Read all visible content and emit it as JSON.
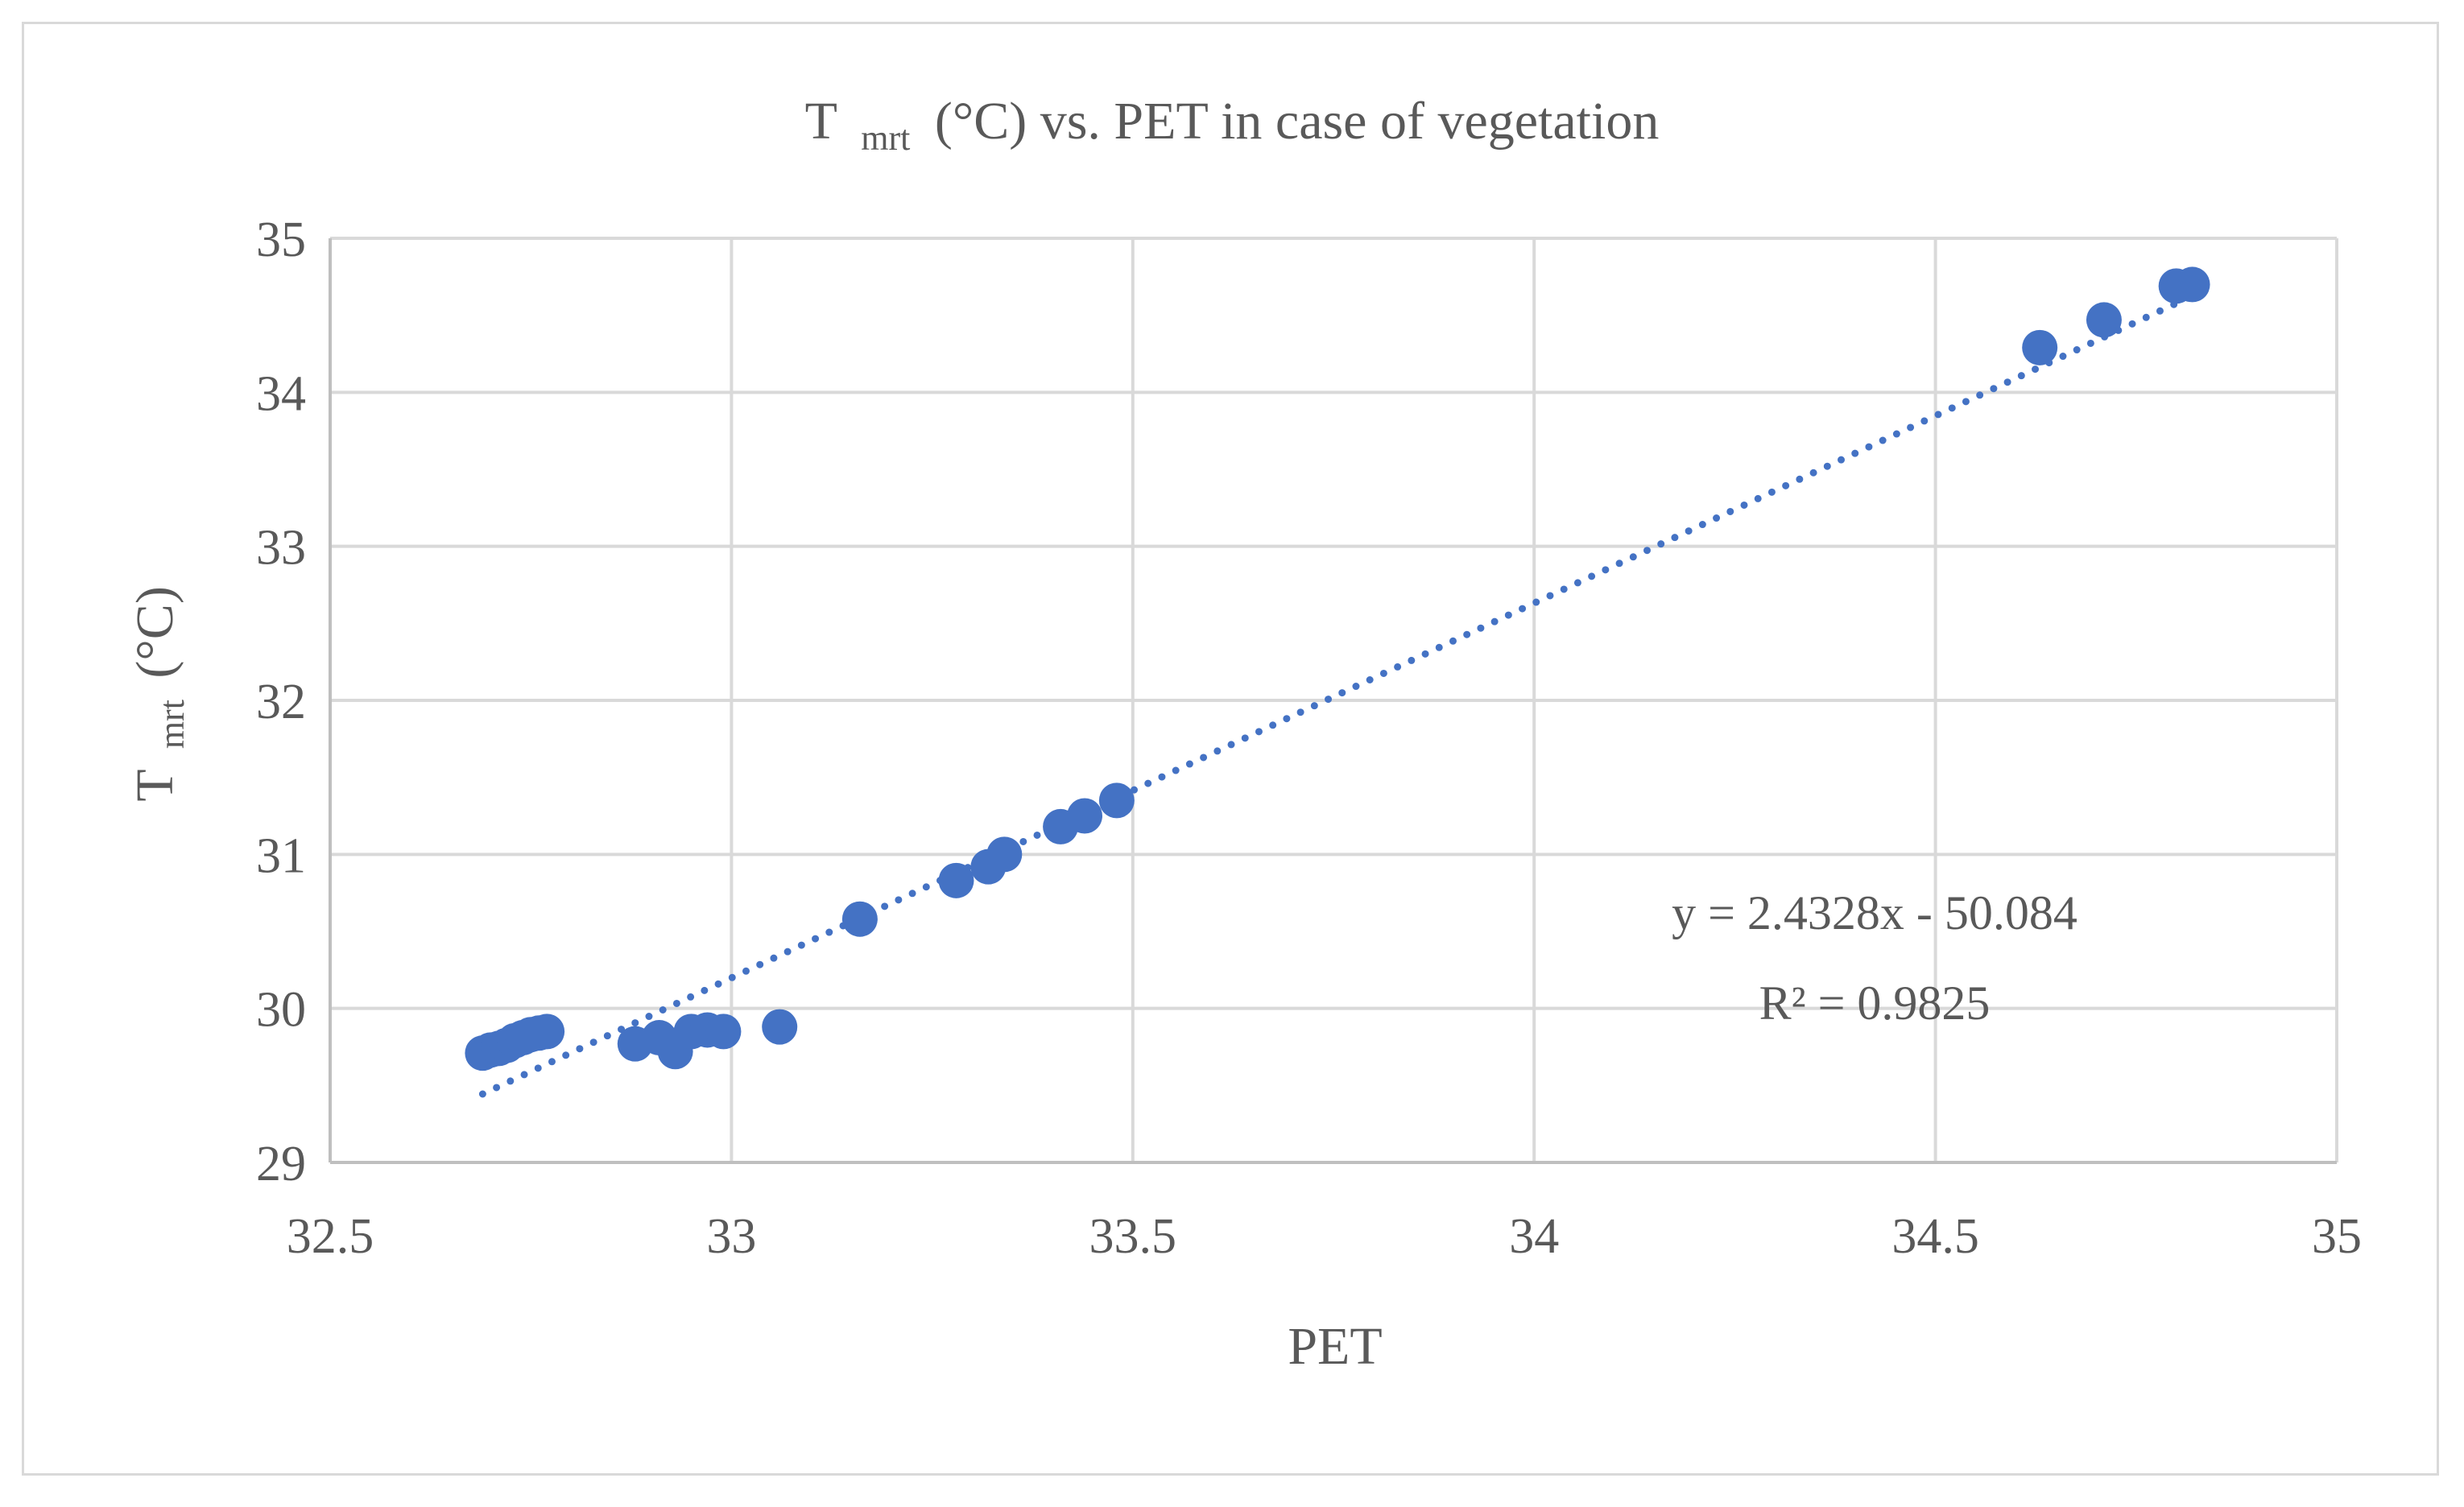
{
  "chart_data": {
    "type": "scatter",
    "title": {
      "main": "T",
      "sub": "mrt",
      "rest": "(°C) vs. PET in case of vegetation"
    },
    "xlabel": "PET",
    "ylabel": {
      "main": "T",
      "sub": "mrt",
      "rest": "(°C)"
    },
    "xlim": [
      32.5,
      35
    ],
    "ylim": [
      29,
      35
    ],
    "x_ticks": [
      32.5,
      33,
      33.5,
      34,
      34.5,
      35
    ],
    "x_tick_labels": [
      "32.5",
      "33",
      "33.5",
      "34",
      "34.5",
      "35"
    ],
    "y_ticks": [
      29,
      30,
      31,
      32,
      33,
      34,
      35
    ],
    "y_tick_labels": [
      "29",
      "30",
      "31",
      "32",
      "33",
      "34",
      "35"
    ],
    "grid": true,
    "legend": "none",
    "marker_color": "#4472c4",
    "trendline_color": "#4472c4",
    "grid_color": "#d9d9d9",
    "text_color": "#595959",
    "series": [
      {
        "x": [
          32.69,
          32.7,
          32.71,
          32.72,
          32.73,
          32.74,
          32.75,
          32.76,
          32.77,
          32.88,
          32.91,
          32.93,
          32.95,
          32.97,
          32.99,
          33.06,
          33.16,
          33.28,
          33.32,
          33.34,
          33.41,
          33.44,
          33.48,
          34.63,
          34.71,
          34.8,
          34.82
        ],
        "y": [
          29.71,
          29.73,
          29.74,
          29.76,
          29.79,
          29.81,
          29.83,
          29.84,
          29.85,
          29.77,
          29.81,
          29.72,
          29.85,
          29.86,
          29.85,
          29.88,
          30.58,
          30.83,
          30.92,
          31.0,
          31.18,
          31.25,
          31.35,
          34.29,
          34.47,
          34.69,
          34.7
        ]
      }
    ],
    "trendline": {
      "type": "linear",
      "slope": 2.4328,
      "intercept": -50.084,
      "x_range": [
        32.69,
        34.82
      ],
      "equation_text": "y = 2.4328x - 50.084",
      "r2_text": "R² = 0.9825"
    }
  }
}
